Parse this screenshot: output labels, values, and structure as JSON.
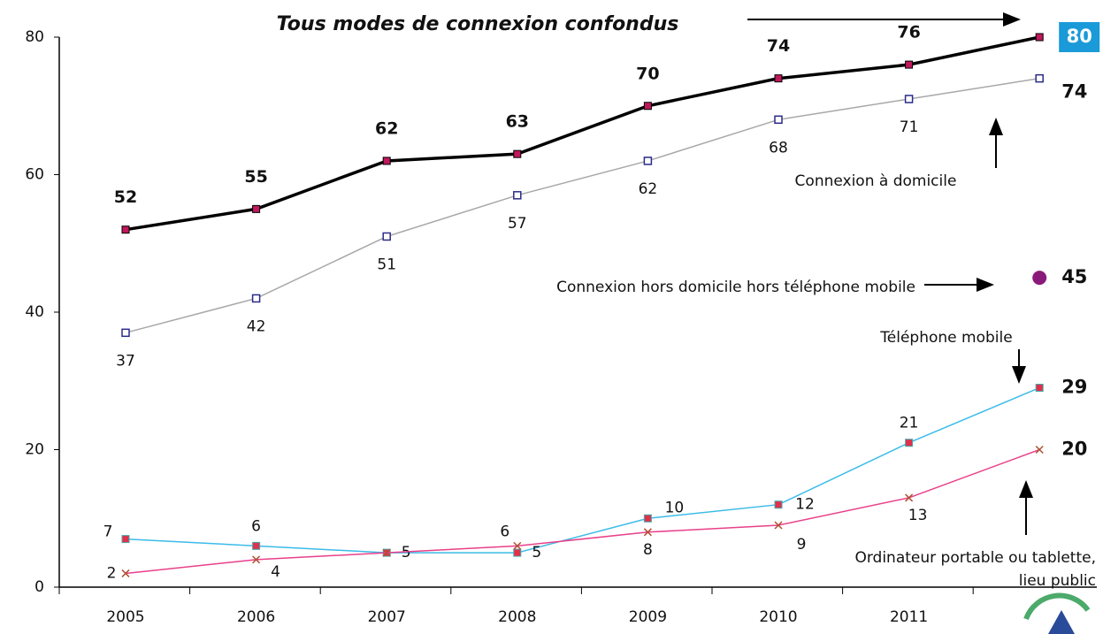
{
  "chart_data": {
    "type": "line",
    "categories": [
      "2005",
      "2006",
      "2007",
      "2008",
      "2009",
      "2010",
      "2011",
      null
    ],
    "ylim": [
      0,
      80
    ],
    "yticks": [
      0,
      20,
      40,
      60,
      80
    ],
    "series": [
      {
        "name": "Tous modes de connexion confondus",
        "color": "#000000",
        "marker_color": "#c0185c",
        "marker": "square",
        "values": [
          52,
          55,
          62,
          63,
          70,
          74,
          76,
          80
        ]
      },
      {
        "name": "Connexion à domicile",
        "color": "#a8a8a8",
        "marker_color": "#2a2a8a",
        "marker": "hollow-square",
        "values": [
          37,
          42,
          51,
          57,
          62,
          68,
          71,
          74
        ]
      },
      {
        "name": "Téléphone mobile",
        "color": "#3bbbe8",
        "marker_color": "#e0304a",
        "marker": "square",
        "values": [
          7,
          6,
          5,
          5,
          10,
          12,
          21,
          29
        ]
      },
      {
        "name": "Ordinateur portable ou tablette, lieu public",
        "color": "#e8408a",
        "marker_color": "#b05030",
        "marker": "x",
        "values": [
          2,
          4,
          5,
          6,
          8,
          9,
          13,
          20
        ]
      },
      {
        "name": "Connexion hors domicile hors téléphone mobile",
        "color": "#8a1a7a",
        "marker_color": "#8a1a7a",
        "marker": "circle",
        "values": [
          null,
          null,
          null,
          null,
          null,
          null,
          null,
          45
        ]
      }
    ]
  }
}
